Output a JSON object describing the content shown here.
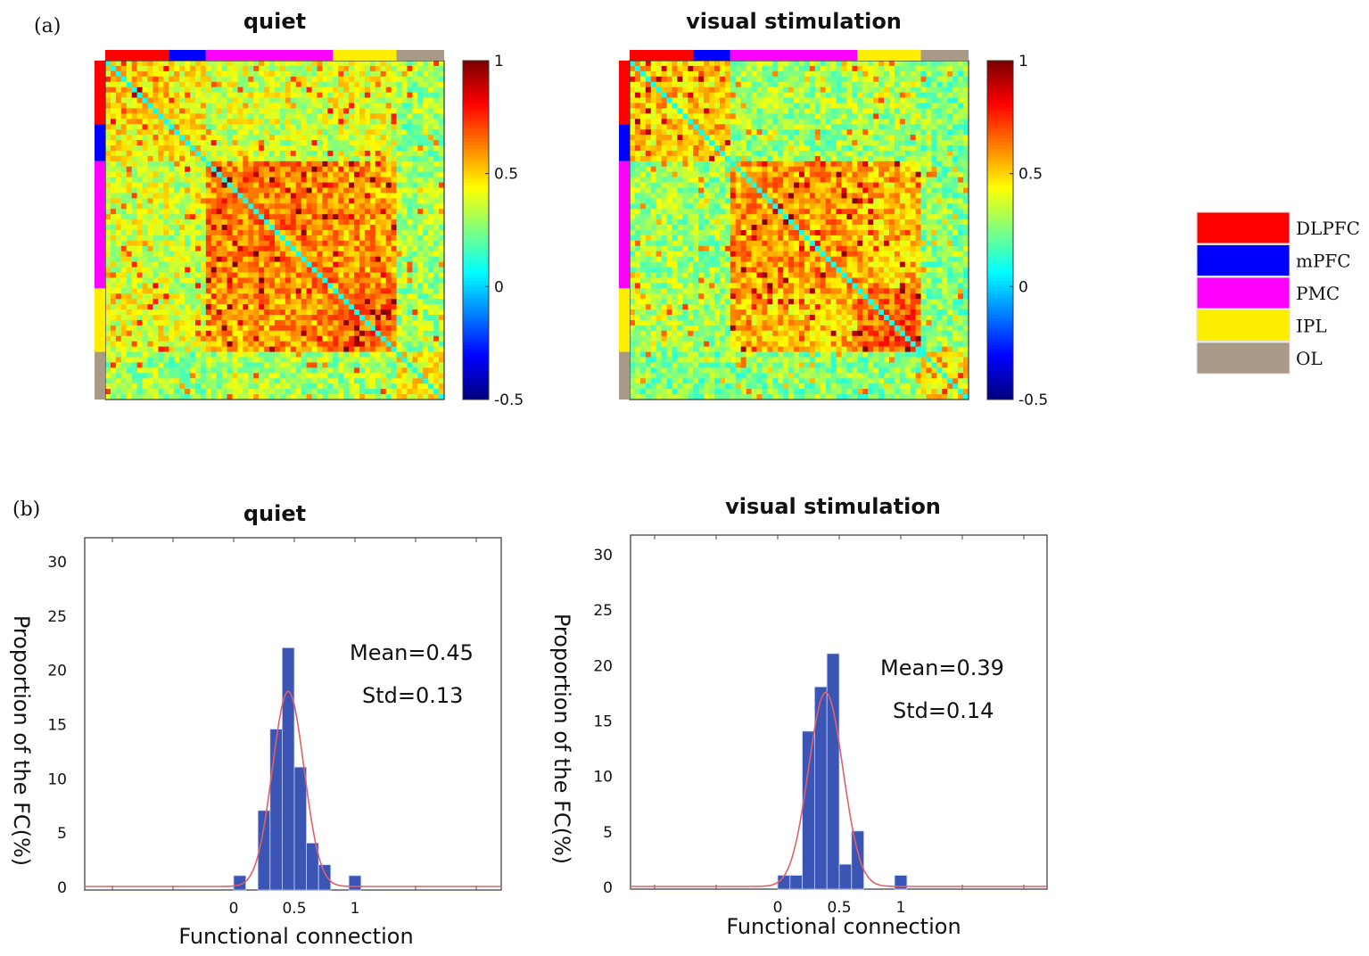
{
  "panel_labels": {
    "a": "(a)",
    "b": "(b)"
  },
  "legend": [
    {
      "label": "DLPFC",
      "color": "#ff0000"
    },
    {
      "label": "mPFC",
      "color": "#0000ff"
    },
    {
      "label": "PMC",
      "color": "#ff00ff"
    },
    {
      "label": "IPL",
      "color": "#ffee00"
    },
    {
      "label": "OL",
      "color": "#a89a86"
    }
  ],
  "chart_data": [
    {
      "type": "heatmap",
      "title": "quiet",
      "colormap": "jet",
      "clim": [
        -0.5,
        1
      ],
      "colorbar_ticks": [
        "1",
        "0.5",
        "0",
        "-0.5"
      ],
      "colorbar_tick_values": [
        1,
        0.5,
        0,
        -0.5
      ],
      "groups": [
        {
          "name": "DLPFC",
          "size": 12
        },
        {
          "name": "mPFC",
          "size": 7
        },
        {
          "name": "PMC",
          "size": 24
        },
        {
          "name": "IPL",
          "size": 12
        },
        {
          "name": "OL",
          "size": 9
        }
      ],
      "block_means": [
        [
          0.5,
          0.45,
          0.38,
          0.4,
          0.3
        ],
        [
          0.45,
          0.5,
          0.35,
          0.38,
          0.28
        ],
        [
          0.38,
          0.35,
          0.62,
          0.58,
          0.3
        ],
        [
          0.4,
          0.38,
          0.58,
          0.66,
          0.3
        ],
        [
          0.3,
          0.28,
          0.3,
          0.3,
          0.45
        ]
      ],
      "diagonal": 0.1,
      "seed": 7
    },
    {
      "type": "heatmap",
      "title": "visual stimulation",
      "colormap": "jet",
      "clim": [
        -0.5,
        1
      ],
      "colorbar_ticks": [
        "1",
        "0.5",
        "0",
        "-0.5"
      ],
      "colorbar_tick_values": [
        1,
        0.5,
        0,
        -0.5
      ],
      "groups": [
        {
          "name": "DLPFC",
          "size": 12
        },
        {
          "name": "mPFC",
          "size": 7
        },
        {
          "name": "PMC",
          "size": 24
        },
        {
          "name": "IPL",
          "size": 12
        },
        {
          "name": "OL",
          "size": 9
        }
      ],
      "block_means": [
        [
          0.52,
          0.48,
          0.3,
          0.32,
          0.25
        ],
        [
          0.48,
          0.55,
          0.28,
          0.3,
          0.24
        ],
        [
          0.3,
          0.28,
          0.58,
          0.52,
          0.26
        ],
        [
          0.32,
          0.3,
          0.52,
          0.68,
          0.27
        ],
        [
          0.25,
          0.24,
          0.26,
          0.27,
          0.45
        ]
      ],
      "diagonal": 0.1,
      "seed": 19
    },
    {
      "type": "bar",
      "title": "quiet",
      "xlabel": "Functional connection",
      "ylabel": "Proportion of the FC(%)",
      "xticks": [
        0,
        0.5,
        1
      ],
      "xtick_labels": [
        "0",
        "0.5",
        "1"
      ],
      "yticks": [
        0,
        5,
        10,
        15,
        20,
        25,
        30
      ],
      "ytick_labels": [
        "0",
        "5",
        "10",
        "15",
        "20",
        "25",
        "30"
      ],
      "xlim": [
        -1.23,
        2.2
      ],
      "ylim": [
        0,
        32
      ],
      "bin_width": 0.1,
      "bins": [
        0.0,
        0.2,
        0.3,
        0.4,
        0.5,
        0.6,
        0.7,
        0.95
      ],
      "values": [
        1,
        7,
        14.5,
        22,
        11,
        4,
        2,
        1
      ],
      "fit": {
        "type": "normal",
        "mean": 0.45,
        "std": 0.13,
        "peak": 18
      },
      "annotations": [
        "Mean=0.45",
        "Std=0.13"
      ]
    },
    {
      "type": "bar",
      "title": "visual stimulation",
      "xlabel": "Functional connection",
      "ylabel": "Proportion of the FC(%)",
      "xticks": [
        0,
        0.5,
        1
      ],
      "xtick_labels": [
        "0",
        "0.5",
        "1"
      ],
      "yticks": [
        0,
        5,
        10,
        15,
        20,
        25,
        30
      ],
      "ytick_labels": [
        "0",
        "5",
        "10",
        "15",
        "20",
        "25",
        "30"
      ],
      "xlim": [
        -1.2,
        2.2
      ],
      "ylim": [
        0,
        32
      ],
      "bin_width": 0.1,
      "bins": [
        0.0,
        0.1,
        0.2,
        0.3,
        0.4,
        0.5,
        0.6,
        0.95
      ],
      "values": [
        1,
        1,
        14,
        18,
        21,
        2,
        5,
        1
      ],
      "fit": {
        "type": "normal",
        "mean": 0.39,
        "std": 0.14,
        "peak": 17.5
      },
      "annotations": [
        "Mean=0.39",
        "Std=0.14"
      ]
    }
  ]
}
